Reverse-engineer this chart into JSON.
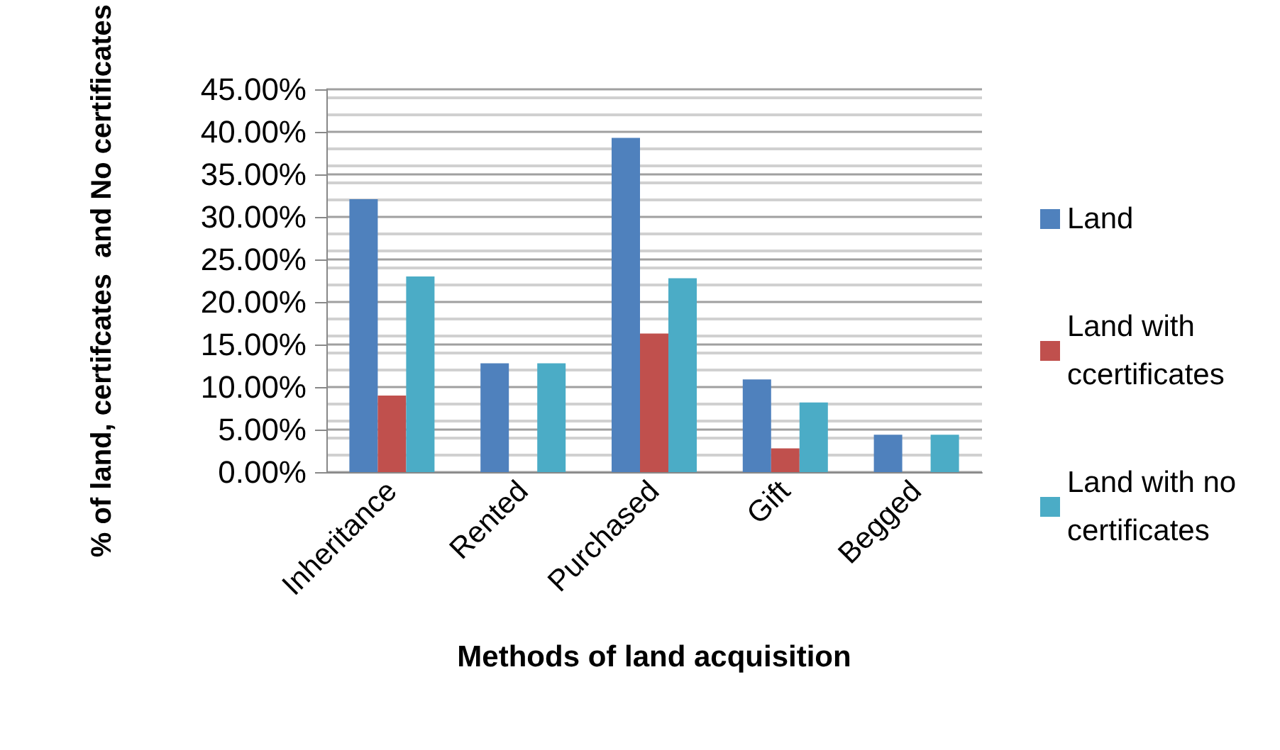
{
  "chart_data": {
    "type": "bar",
    "xlabel": "Methods of land acquisition",
    "ylabel": "% of land, certifcates  and No certificates",
    "categories": [
      "Inheritance",
      "Rented",
      "Purchased",
      "Gift",
      "Begged"
    ],
    "series": [
      {
        "name": "Land",
        "color": "#4f81bd",
        "values": [
          32.1,
          12.8,
          39.3,
          10.9,
          4.4
        ]
      },
      {
        "name": "Land with ccertificates",
        "color": "#c0504d",
        "values": [
          9.0,
          0,
          16.3,
          2.8,
          0
        ]
      },
      {
        "name": "Land with no certificates",
        "color": "#4bacc6",
        "values": [
          23.0,
          12.8,
          22.8,
          8.2,
          4.4
        ]
      }
    ],
    "ylim": [
      0,
      45
    ],
    "yticks": [
      {
        "value": 0,
        "label": "0.00%"
      },
      {
        "value": 5,
        "label": "5.00%"
      },
      {
        "value": 10,
        "label": "10.00%"
      },
      {
        "value": 15,
        "label": "15.00%"
      },
      {
        "value": 20,
        "label": "20.00%"
      },
      {
        "value": 25,
        "label": "25.00%"
      },
      {
        "value": 30,
        "label": "30.00%"
      },
      {
        "value": 35,
        "label": "35.00%"
      },
      {
        "value": 40,
        "label": "40.00%"
      },
      {
        "value": 45,
        "label": "45.00%"
      }
    ],
    "grid": "y",
    "legend": "right"
  }
}
